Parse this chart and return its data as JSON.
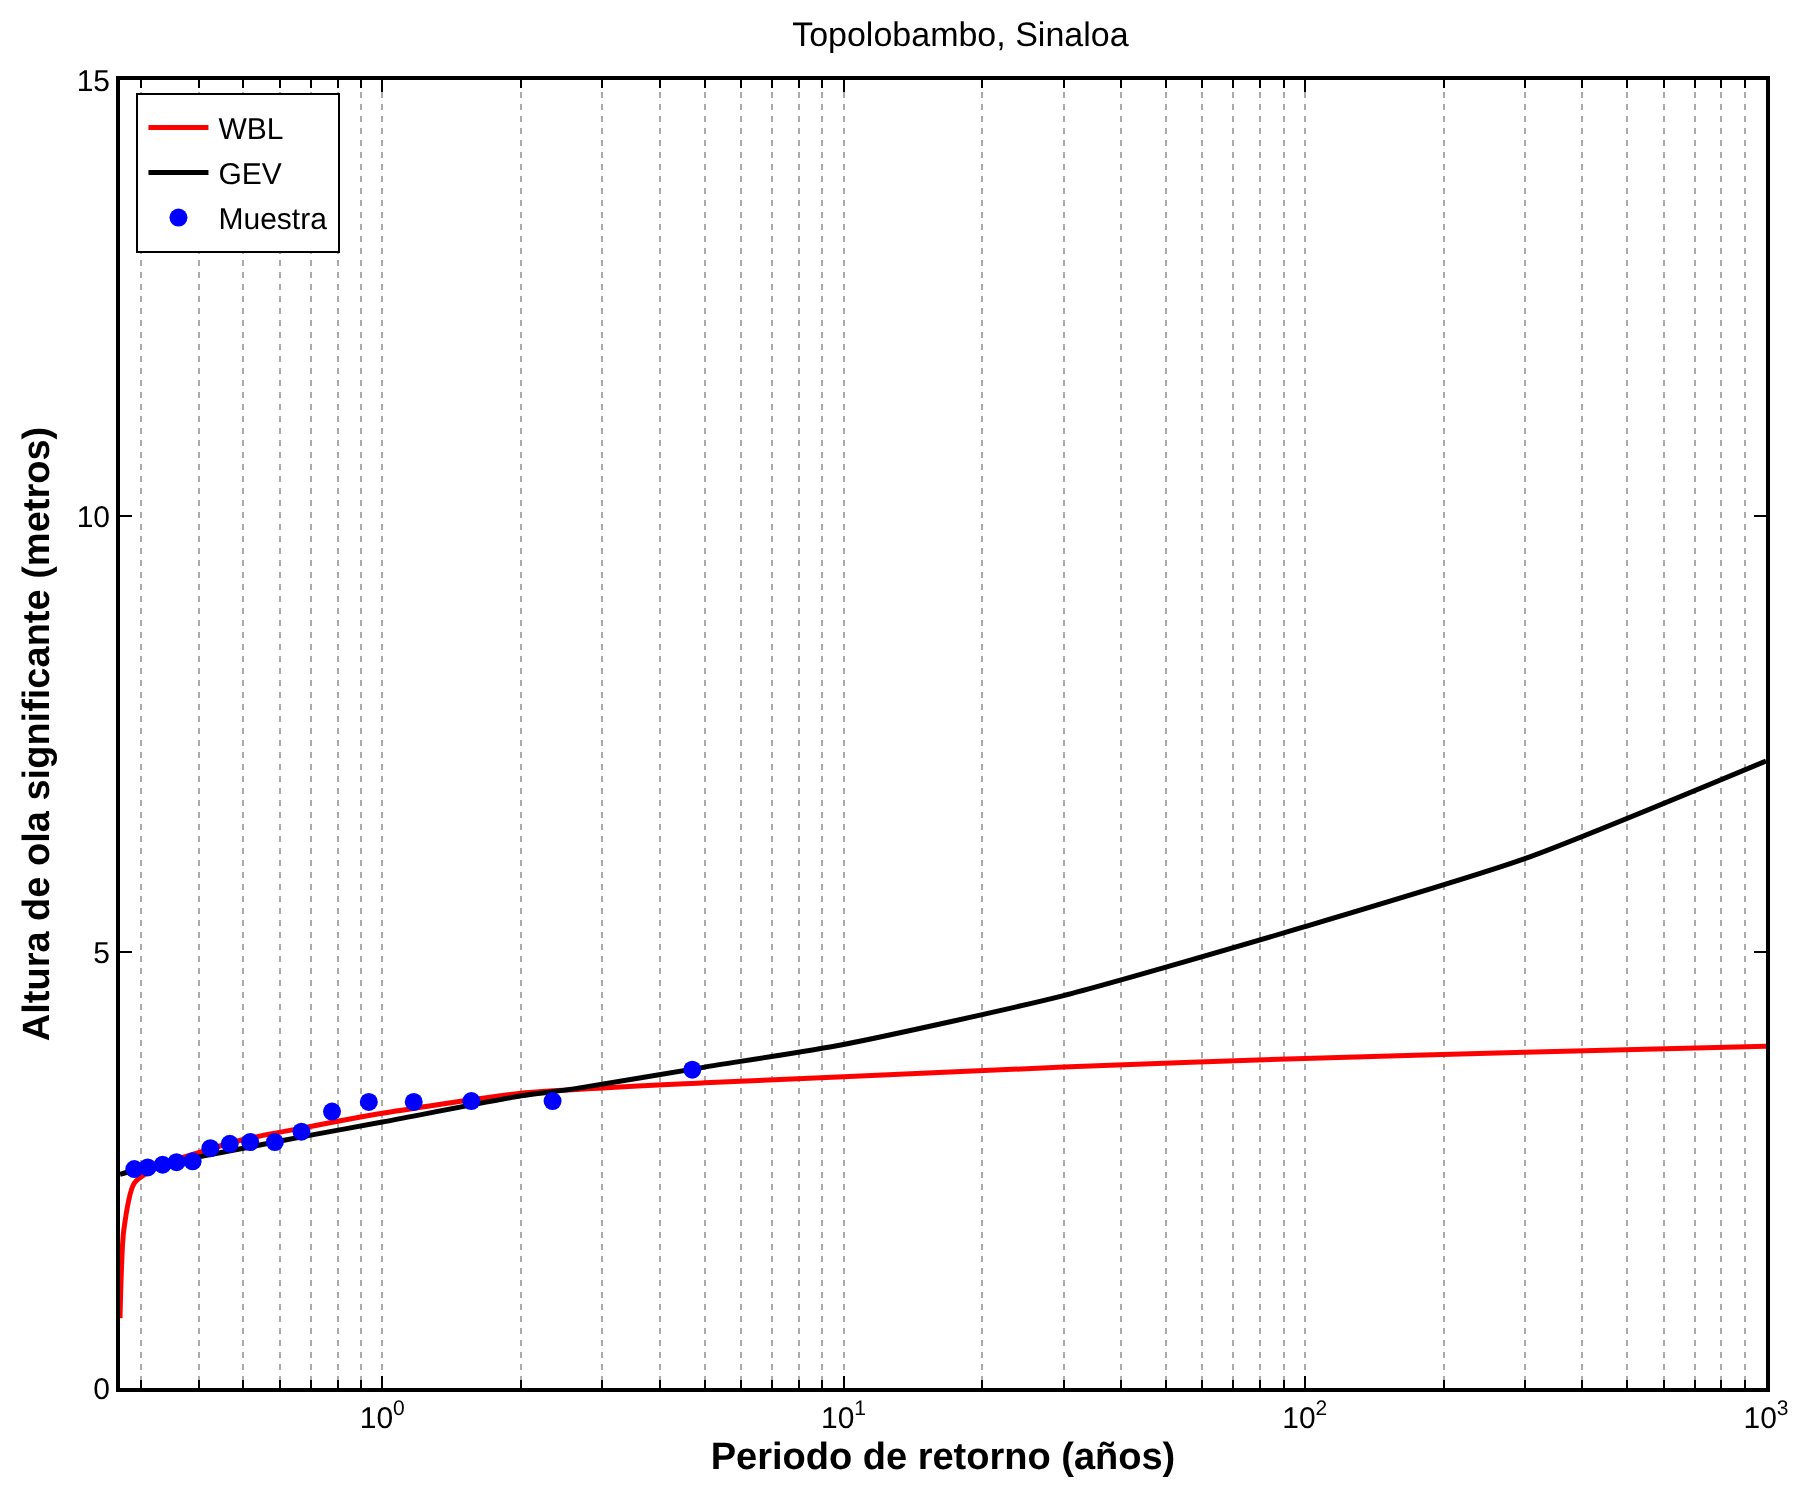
{
  "chart_data": {
    "type": "line",
    "title": "Topolobambo, Sinaloa",
    "xlabel": "Periodo de retorno (años)",
    "ylabel": "Altura de ola significante (metros)",
    "log": "x",
    "xlim": [
      0.27,
      1000
    ],
    "ylim": [
      0,
      15
    ],
    "xticks": [
      {
        "value": 1,
        "label": "10$^{0}$"
      },
      {
        "value": 10,
        "label": "10$^{1}$"
      },
      {
        "value": 100,
        "label": "10$^{2}$"
      },
      {
        "value": 1000,
        "label": "10$^{3}$"
      }
    ],
    "yticks": [
      0,
      5,
      10,
      15
    ],
    "grid": "x",
    "legend": "top left",
    "series": [
      {
        "name": "WBL",
        "color": "#ff0000",
        "x": [
          0.27,
          0.275,
          0.29,
          0.33,
          0.4,
          0.5,
          0.7,
          1,
          2,
          5,
          10,
          30,
          100,
          300,
          1000
        ],
        "values": [
          0.8,
          1.8,
          2.35,
          2.55,
          2.7,
          2.85,
          3.0,
          3.15,
          3.38,
          3.5,
          3.57,
          3.68,
          3.78,
          3.85,
          3.92
        ]
      },
      {
        "name": "GEV",
        "color": "#000000",
        "x": [
          0.27,
          0.3,
          0.4,
          0.5,
          0.7,
          1,
          2,
          2.6,
          5,
          10,
          30,
          100,
          300,
          1000
        ],
        "values": [
          2.45,
          2.52,
          2.65,
          2.75,
          2.9,
          3.05,
          3.35,
          3.43,
          3.68,
          3.94,
          4.5,
          5.29,
          6.07,
          7.19
        ]
      },
      {
        "name": "Muestra",
        "type": "scatter",
        "marker": "circle",
        "color": "#0000ff",
        "x": [
          0.29,
          0.31,
          0.334,
          0.358,
          0.388,
          0.424,
          0.467,
          0.517,
          0.585,
          0.668,
          0.778,
          0.935,
          1.17,
          1.56,
          2.34,
          4.7
        ],
        "values": [
          2.51,
          2.53,
          2.56,
          2.59,
          2.6,
          2.75,
          2.8,
          2.82,
          2.82,
          2.94,
          3.17,
          3.28,
          3.28,
          3.29,
          3.29,
          3.65
        ]
      }
    ]
  }
}
